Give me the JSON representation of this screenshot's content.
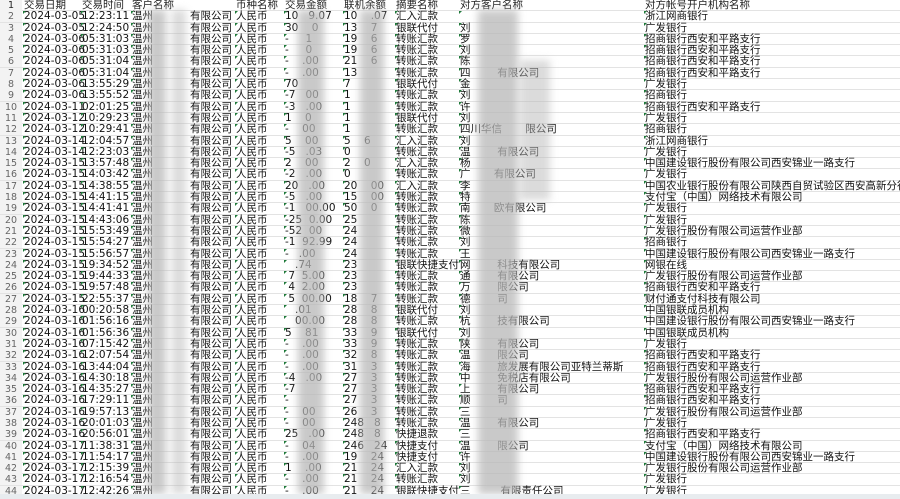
{
  "headers": [
    "交易日期",
    "交易时间",
    "客户名称",
    "币种名称",
    "交易金额",
    "联机余额",
    "摘要名称",
    "对方客户名称",
    "对方帐号开户机构名称"
  ],
  "customer": {
    "prefix": "温州",
    "suffix": "有限公司"
  },
  "currency": "人民币",
  "rows": [
    {
      "n": "2",
      "date": "2024-03-05",
      "time": "12:23:11",
      "amt": "10   9.07",
      "bal": "10    .07",
      "sum": "汇入汇款",
      "cp": "",
      "bank": "浙江网商银行"
    },
    {
      "n": "3",
      "date": "2024-03-05",
      "time": "12:24:50",
      "amt": "30    0",
      "bal": "13    7",
      "sum": "银联代付",
      "cp": "刘",
      "bank": "广发银行"
    },
    {
      "n": "4",
      "date": "2024-03-06",
      "time": "05:31:03",
      "amt": "-     1",
      "bal": "19    6",
      "sum": "转账汇款",
      "cp": "罗",
      "bank": "招商银行西安和平路支行"
    },
    {
      "n": "5",
      "date": "2024-03-06",
      "time": "05:31:03",
      "amt": "-     0",
      "bal": "19    6",
      "sum": "转账汇款",
      "cp": "刘",
      "bank": "招商银行西安和平路支行"
    },
    {
      "n": "6",
      "date": "2024-03-06",
      "time": "05:31:04",
      "amt": "-    .00",
      "bal": "21    6",
      "sum": "转账汇款",
      "cp": "陈",
      "bank": "招商银行西安和平路支行"
    },
    {
      "n": "7",
      "date": "2024-03-06",
      "time": "05:31:04",
      "amt": "-    .00",
      "bal": "13",
      "sum": "转账汇款",
      "cp": "四        有限公司",
      "bank": "招商银行西安和平路支行"
    },
    {
      "n": "8",
      "date": "2024-03-06",
      "time": "13:55:29",
      "amt": "70",
      "bal": "7",
      "sum": "银联代付",
      "cp": "金",
      "bank": "广发银行"
    },
    {
      "n": "9",
      "date": "2024-03-06",
      "time": "13:55:52",
      "amt": "-7   00",
      "bal": "1",
      "sum": "转账汇款",
      "cp": "刘",
      "bank": "招商银行"
    },
    {
      "n": "10",
      "date": "2024-03-11",
      "time": "02:01:25",
      "amt": "-3   .00",
      "bal": "1",
      "sum": "转账汇款",
      "cp": "许",
      "bank": "招商银行西安和平路支行"
    },
    {
      "n": "11",
      "date": "2024-03-12",
      "time": "10:29:23",
      "amt": "1    0",
      "bal": "1",
      "sum": "银联代付",
      "cp": "刘",
      "bank": "广发银行"
    },
    {
      "n": "12",
      "date": "2024-03-12",
      "time": "10:29:41",
      "amt": "-    00",
      "bal": "1",
      "sum": "转账汇款",
      "cp": "四川华信       限公司",
      "bank": "招商银行"
    },
    {
      "n": "13",
      "date": "2024-03-14",
      "time": "12:04:57",
      "amt": "5    00",
      "bal": "5    6",
      "sum": "汇入汇款",
      "cp": "刘",
      "bank": "浙江网商银行"
    },
    {
      "n": "14",
      "date": "2024-03-14",
      "time": "12:23:03",
      "amt": "-5   .03",
      "bal": "0",
      "sum": "转账汇款",
      "cp": "温        有限公司",
      "bank": "广发银行"
    },
    {
      "n": "15",
      "date": "2024-03-15",
      "time": "13:57:48",
      "amt": "2    00",
      "bal": "2    0",
      "sum": "汇入汇款",
      "cp": "杨",
      "bank": "中国建设银行股份有限公司西安锦业一路支行"
    },
    {
      "n": "16",
      "date": "2024-03-15",
      "time": "14:03:42",
      "amt": "-2   .00",
      "bal": "0",
      "sum": "转账汇款",
      "cp": "广       有限公司",
      "bank": "广发银行"
    },
    {
      "n": "17",
      "date": "2024-03-15",
      "time": "14:38:55",
      "amt": "20   .00",
      "bal": "20    00",
      "sum": "汇入汇款",
      "cp": "李",
      "bank": "中国农业银行股份有限公司陕西自贸试验区西安高新分行"
    },
    {
      "n": "18",
      "date": "2024-03-15",
      "time": "14:41:15",
      "amt": "-5   .00",
      "bal": "15    00",
      "sum": "转账汇款",
      "cp": "特",
      "bank": "支付宝（中国）网络技术有限公司"
    },
    {
      "n": "19",
      "date": "2024-03-15",
      "time": "14:41:41",
      "amt": "-1   00.00",
      "bal": "50    0",
      "sum": "转账汇款",
      "cp": "南       欧有限公司",
      "bank": "广发银行"
    },
    {
      "n": "20",
      "date": "2024-03-15",
      "time": "14:43:06",
      "amt": "-25  0.00",
      "bal": "25",
      "sum": "转账汇款",
      "cp": "陈",
      "bank": "广发银行"
    },
    {
      "n": "21",
      "date": "2024-03-15",
      "time": "15:53:49",
      "amt": "-52  00",
      "bal": "24",
      "sum": "转账汇款",
      "cp": "微",
      "bank": "广发银行股份有限公司运营作业部"
    },
    {
      "n": "22",
      "date": "2024-03-15",
      "time": "15:54:27",
      "amt": "-1  92.99",
      "bal": "24",
      "sum": "转账汇款",
      "cp": "刘",
      "bank": "招商银行"
    },
    {
      "n": "23",
      "date": "2024-03-15",
      "time": "15:56:57",
      "amt": "-   .00",
      "bal": "24",
      "sum": "转账汇款",
      "cp": "王",
      "bank": "中国建设银行股份有限公司西安锦业一路支行"
    },
    {
      "n": "24",
      "date": "2024-03-15",
      "time": "19:34:52",
      "amt": "   .74",
      "bal": "23",
      "sum": "银联快捷支付",
      "cp": "网        科技有限公司",
      "bank": "网银在线"
    },
    {
      "n": "25",
      "date": "2024-03-15",
      "time": "19:44:33",
      "amt": " 7  5.00",
      "bal": "23",
      "sum": "转账汇款",
      "cp": "通        有限公司",
      "bank": "广发银行股份有限公司运营作业部"
    },
    {
      "n": "26",
      "date": "2024-03-15",
      "time": "19:57:48",
      "amt": " 4  2.00",
      "bal": "23",
      "sum": "转账汇款",
      "cp": "万        限公司",
      "bank": "招商银行西安和平路支行"
    },
    {
      "n": "27",
      "date": "2024-03-15",
      "time": "22:55:37",
      "amt": " 5  00.00",
      "bal": "18    7",
      "sum": "转账汇款",
      "cp": "德        司",
      "bank": "财付通支付科技有限公司"
    },
    {
      "n": "28",
      "date": "2024-03-16",
      "time": "00:20:58",
      "amt": "   .01",
      "bal": "28    8",
      "sum": "银联代付",
      "cp": "刘",
      "bank": "中国银联成员机构"
    },
    {
      "n": "29",
      "date": "2024-03-16",
      "time": "01:56:16",
      "amt": "   00.00",
      "bal": "28    8",
      "sum": "转账汇款",
      "cp": "杭        技有限公司",
      "bank": "中国建设银行股份有限公司西安锦业一路支行"
    },
    {
      "n": "30",
      "date": "2024-03-16",
      "time": "01:56:36",
      "amt": "5    81",
      "bal": "33    9",
      "sum": "银联代付",
      "cp": "刘",
      "bank": "中国银联成员机构"
    },
    {
      "n": "31",
      "date": "2024-03-16",
      "time": "07:15:42",
      "amt": "-    .00",
      "bal": "33    9",
      "sum": "转账汇款",
      "cp": "陕        有限公司",
      "bank": "广发银行"
    },
    {
      "n": "32",
      "date": "2024-03-16",
      "time": "12:07:54",
      "amt": "-    .00",
      "bal": "32    8",
      "sum": "转账汇款",
      "cp": "温        限公司",
      "bank": "招商银行西安和平路支行"
    },
    {
      "n": "33",
      "date": "2024-03-16",
      "time": "13:44:04",
      "amt": "-    .00",
      "bal": "31    3",
      "sum": "转账汇款",
      "cp": "海        旅发展有限公司亚特兰蒂斯",
      "bank": "招商银行西安和平路支行"
    },
    {
      "n": "34",
      "date": "2024-03-16",
      "time": "14:30:18",
      "amt": "-4   .00",
      "bal": "27    3",
      "sum": "转账汇款",
      "cp": "中        免税店有限公司",
      "bank": "广发银行股份有限公司运营作业部"
    },
    {
      "n": "35",
      "date": "2024-03-16",
      "time": "14:35:27",
      "amt": "-7",
      "bal": "27    3",
      "sum": "转账汇款",
      "cp": "上        有限公司",
      "bank": "招商银行西安和平路支行"
    },
    {
      "n": "36",
      "date": "2024-03-16",
      "time": "17:29:11",
      "amt": "-",
      "bal": "27    3",
      "sum": "转账汇款",
      "cp": "顺        司",
      "bank": "招商银行西安和平路支行"
    },
    {
      "n": "37",
      "date": "2024-03-16",
      "time": "19:57:13",
      "amt": "-    00",
      "bal": "26    3",
      "sum": "转账汇款",
      "cp": "三",
      "bank": "广发银行股份有限公司运营作业部"
    },
    {
      "n": "38",
      "date": "2024-03-16",
      "time": "20:01:03",
      "amt": "-    00",
      "bal": "248   8",
      "sum": "转账汇款",
      "cp": "温        有限公司",
      "bank": "广发银行"
    },
    {
      "n": "39",
      "date": "2024-03-16",
      "time": "20:56:01",
      "amt": "25   .00",
      "bal": "248   8",
      "sum": "快捷退款",
      "cp": "三",
      "bank": "招商银行西安和平路支行"
    },
    {
      "n": "40",
      "date": "2024-03-17",
      "time": "11:38:31",
      "amt": "-    04",
      "bal": "246   24",
      "sum": "快捷支付",
      "cp": "温        限公司",
      "bank": "支付宝（中国）网络技术有限公司"
    },
    {
      "n": "41",
      "date": "2024-03-17",
      "time": "11:54:17",
      "amt": "-    .00",
      "bal": "19    24",
      "sum": "快捷支付",
      "cp": "许",
      "bank": "中国建设银行股份有限公司西安锦业一路支行"
    },
    {
      "n": "42",
      "date": "2024-03-17",
      "time": "12:15:39",
      "amt": "1    .00",
      "bal": "21    24",
      "sum": "汇入汇款",
      "cp": "刘",
      "bank": "广发银行股份有限公司运营作业部"
    },
    {
      "n": "43",
      "date": "2024-03-17",
      "time": "12:16:54",
      "amt": "-    .00",
      "bal": "21    24",
      "sum": "转账汇款",
      "cp": "刘",
      "bank": "广发银行"
    },
    {
      "n": "44",
      "date": "2024-03-17",
      "time": "12:42:26",
      "amt": "-    .00",
      "bal": "21    24",
      "sum": "银联快捷支付",
      "cp": "三         有限责任公司",
      "bank": "广发银行"
    }
  ]
}
